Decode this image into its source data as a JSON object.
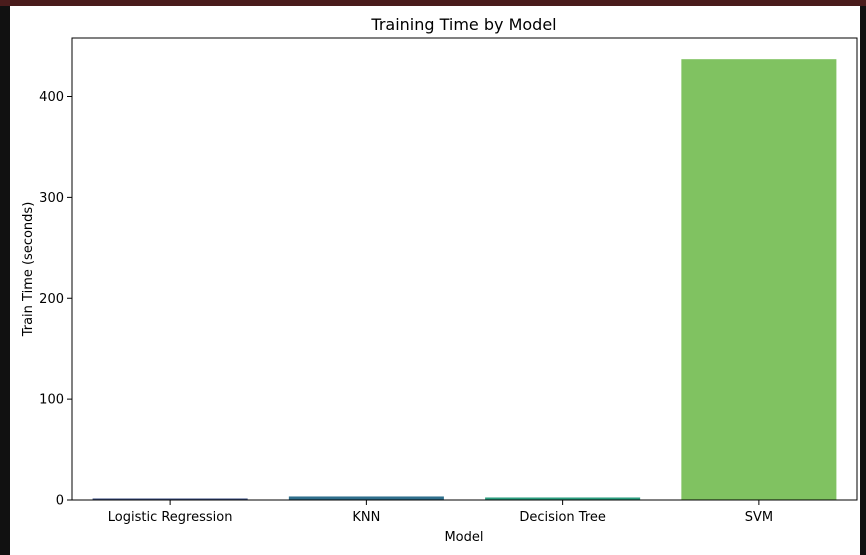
{
  "chart_data": {
    "type": "bar",
    "title": "Training Time by Model",
    "xlabel": "Model",
    "ylabel": "Train Time (seconds)",
    "categories": [
      "Logistic Regression",
      "KNN",
      "Decision Tree",
      "SVM"
    ],
    "values": [
      1.5,
      3.5,
      2.5,
      437
    ],
    "colors": [
      "#3b4f82",
      "#2f6f8c",
      "#2b9e7f",
      "#80c261"
    ],
    "ylim": [
      0,
      458
    ],
    "yticks": [
      0,
      100,
      200,
      300,
      400
    ],
    "grid": false,
    "legend": "none"
  }
}
